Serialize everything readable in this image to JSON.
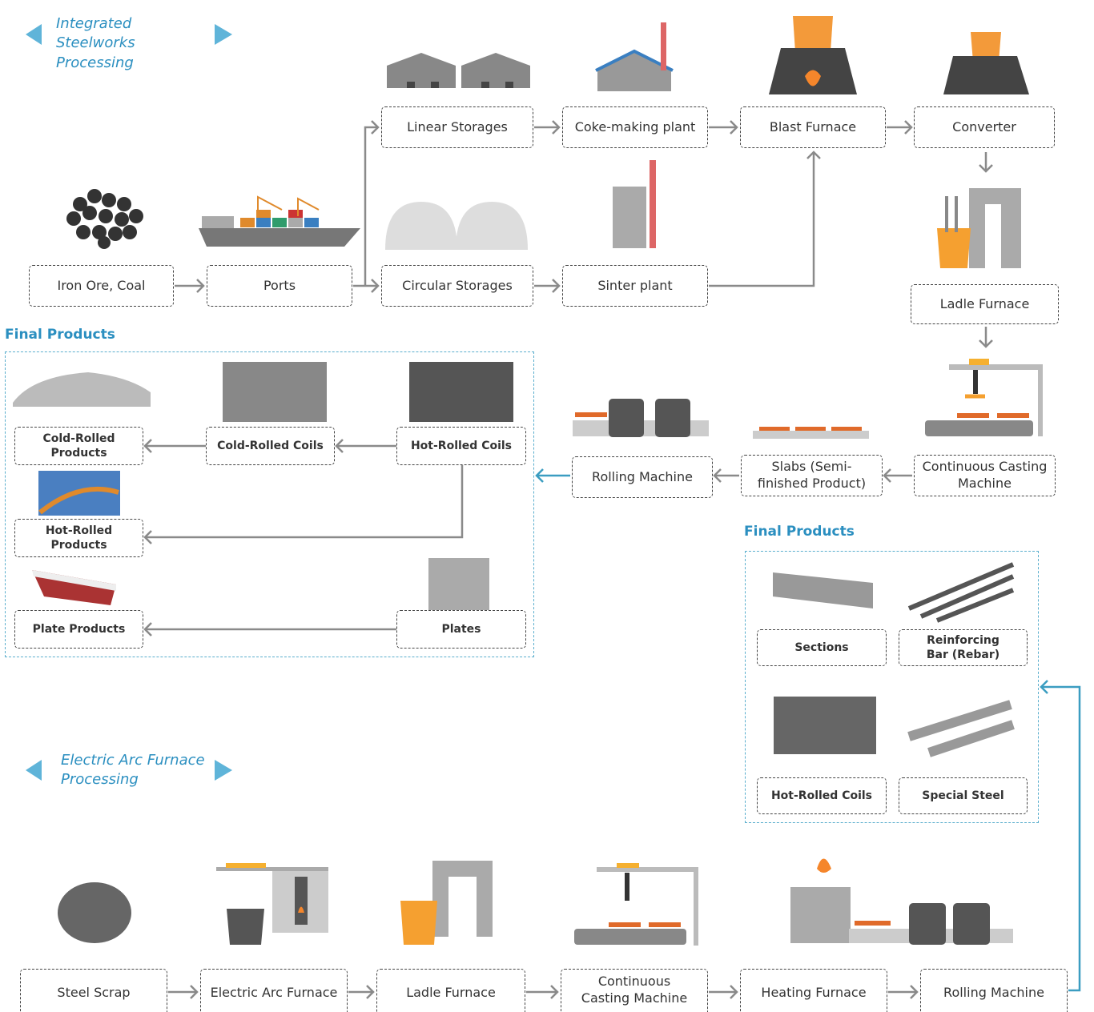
{
  "integrated": {
    "title": "Integrated Steelworks Processing",
    "nodes": [
      "Linear Storages",
      "Coke-making plant",
      "Blast Furnace",
      "Converter",
      "Iron Ore, Coal",
      "Ports",
      "Circular Storages",
      "Sinter plant",
      "Ladle Furnace",
      "Continuous Casting Machine",
      "Slabs (Semi-finished Product)",
      "Rolling Machine"
    ]
  },
  "final_products_a": {
    "title": "Final Products",
    "items": [
      "Cold-Rolled Products",
      "Cold-Rolled Coils",
      "Hot-Rolled Coils",
      "Hot-Rolled Products",
      "Plate Products",
      "Plates"
    ]
  },
  "final_products_b": {
    "title": "Final Products",
    "items": [
      "Sections",
      "Reinforcing Bar (Rebar)",
      "Hot-Rolled Coils",
      "Special Steel"
    ]
  },
  "eaf": {
    "title": "Electric Arc Furnace Processing",
    "nodes": [
      "Steel Scrap",
      "Electric Arc Furnace",
      "Ladle Furnace",
      "Continuous Casting Machine",
      "Heating Furnace",
      "Rolling Machine"
    ]
  }
}
